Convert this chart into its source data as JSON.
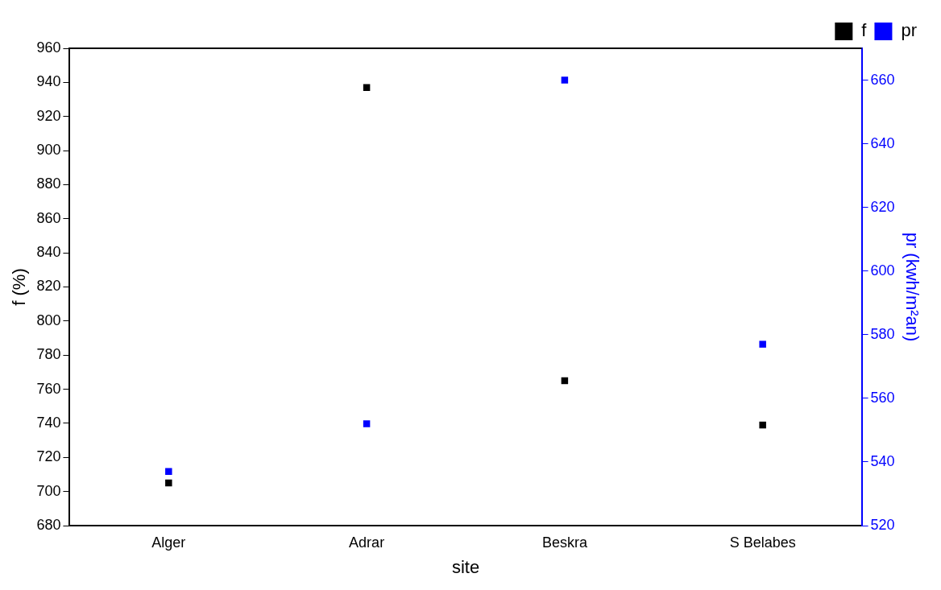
{
  "chart_data": {
    "type": "scatter",
    "xlabel": "site",
    "ylabel": "f (%)",
    "y2label": "pr (kwh/m²an)",
    "categories": [
      "Alger",
      "Adrar",
      "Beskra",
      "S Belabes"
    ],
    "series": [
      {
        "name": "f",
        "color": "#000000",
        "values": [
          705,
          937,
          765,
          739
        ]
      },
      {
        "name": "pr",
        "color": "#0000ff",
        "axis": "y2",
        "values": [
          537,
          552,
          660,
          577
        ]
      }
    ],
    "ylim": [
      680,
      960
    ],
    "yticks": [
      680,
      700,
      720,
      740,
      760,
      780,
      800,
      820,
      840,
      860,
      880,
      900,
      920,
      940,
      960
    ],
    "y2lim": [
      520,
      670
    ],
    "y2ticks": [
      520,
      540,
      560,
      580,
      600,
      620,
      640,
      660
    ],
    "grid": false,
    "legend": "top right",
    "marker": "square"
  }
}
